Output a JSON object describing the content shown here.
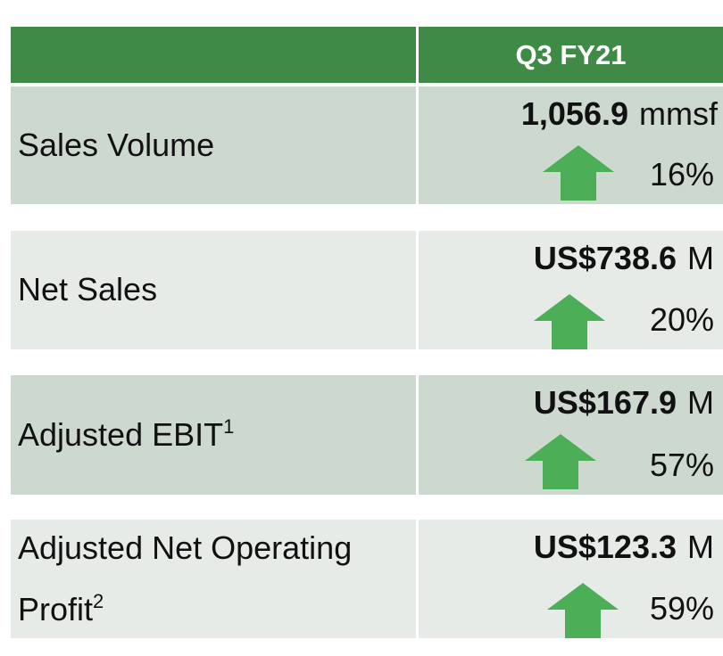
{
  "header": {
    "period": "Q3 FY21"
  },
  "colors": {
    "header_green": "#3f8a47",
    "arrow_green": "#4caf58",
    "row_dark": "#cdd8cf",
    "row_light": "#e7ebe7"
  },
  "rows": [
    {
      "label": "Sales Volume",
      "sup": "",
      "amount": "1,056.9",
      "unit": "mmsf",
      "change": "16%",
      "direction": "up"
    },
    {
      "label": "Net Sales",
      "sup": "",
      "amount": "US$738.6",
      "unit": "M",
      "change": "20%",
      "direction": "up"
    },
    {
      "label": "Adjusted EBIT",
      "sup": "1",
      "amount": "US$167.9",
      "unit": "M",
      "change": "57%",
      "direction": "up"
    },
    {
      "label_line1": "Adjusted Net Operating",
      "label_line2": "Profit",
      "sup": "2",
      "amount": "US$123.3",
      "unit": "M",
      "change": "59%",
      "direction": "up"
    }
  ]
}
